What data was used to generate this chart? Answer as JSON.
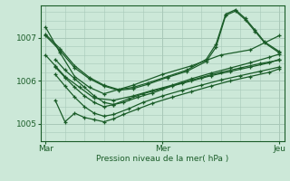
{
  "bg_color": "#cce8d8",
  "grid_color": "#a8c8b8",
  "line_color": "#1a5c28",
  "xlabel": "Pression niveau de la mer( hPa )",
  "xtick_labels": [
    "Mar",
    "Mer",
    "Jeu"
  ],
  "xtick_positions": [
    0,
    48,
    96
  ],
  "ytick_labels": [
    "1005",
    "1006",
    "1007"
  ],
  "ytick_positions": [
    1005,
    1006,
    1007
  ],
  "ylim": [
    1004.6,
    1007.75
  ],
  "xlim": [
    -2,
    98
  ],
  "series": [
    {
      "x": [
        0,
        6,
        12,
        18,
        24,
        36,
        48,
        60,
        72,
        84,
        96
      ],
      "y": [
        1007.25,
        1006.65,
        1006.1,
        1005.85,
        1005.7,
        1005.9,
        1006.15,
        1006.35,
        1006.6,
        1006.72,
        1007.05
      ]
    },
    {
      "x": [
        0,
        4,
        8,
        14,
        20,
        28,
        36,
        44,
        52,
        60,
        68,
        76,
        84,
        92,
        96
      ],
      "y": [
        1006.6,
        1006.35,
        1006.1,
        1005.85,
        1005.6,
        1005.55,
        1005.65,
        1005.78,
        1005.9,
        1006.05,
        1006.18,
        1006.3,
        1006.42,
        1006.55,
        1006.62
      ]
    },
    {
      "x": [
        4,
        8,
        12,
        16,
        20,
        24,
        28,
        32,
        38,
        44,
        52,
        60,
        68,
        76,
        84,
        92,
        96
      ],
      "y": [
        1006.5,
        1006.25,
        1006.05,
        1005.85,
        1005.65,
        1005.5,
        1005.45,
        1005.5,
        1005.62,
        1005.72,
        1005.88,
        1006.0,
        1006.12,
        1006.22,
        1006.32,
        1006.42,
        1006.5
      ]
    },
    {
      "x": [
        4,
        8,
        12,
        16,
        20,
        24,
        28,
        34,
        40,
        48,
        56,
        64,
        72,
        80,
        88,
        96
      ],
      "y": [
        1006.15,
        1005.88,
        1005.62,
        1005.4,
        1005.25,
        1005.18,
        1005.22,
        1005.35,
        1005.5,
        1005.65,
        1005.78,
        1005.9,
        1006.02,
        1006.12,
        1006.22,
        1006.32
      ]
    },
    {
      "x": [
        4,
        8,
        12,
        16,
        20,
        24,
        28,
        32,
        38,
        44,
        52,
        60,
        68,
        76,
        84,
        92,
        96
      ],
      "y": [
        1005.55,
        1005.05,
        1005.25,
        1005.15,
        1005.1,
        1005.05,
        1005.12,
        1005.22,
        1005.35,
        1005.48,
        1005.62,
        1005.75,
        1005.88,
        1006.0,
        1006.1,
        1006.2,
        1006.28
      ]
    },
    {
      "x": [
        4,
        8,
        12,
        16,
        20,
        24,
        28,
        34,
        40,
        48,
        56,
        64,
        72,
        80,
        88,
        96
      ],
      "y": [
        1006.32,
        1006.08,
        1005.85,
        1005.65,
        1005.5,
        1005.4,
        1005.45,
        1005.58,
        1005.7,
        1005.82,
        1005.95,
        1006.08,
        1006.2,
        1006.3,
        1006.4,
        1006.48
      ]
    },
    {
      "x": [
        0,
        6,
        12,
        18,
        24,
        30,
        36,
        42,
        50,
        58,
        66,
        70,
        74,
        78,
        82,
        86,
        90,
        96
      ],
      "y": [
        1007.05,
        1006.7,
        1006.3,
        1006.05,
        1005.88,
        1005.78,
        1005.82,
        1005.92,
        1006.08,
        1006.22,
        1006.45,
        1006.78,
        1007.52,
        1007.62,
        1007.42,
        1007.15,
        1006.88,
        1006.65
      ]
    },
    {
      "x": [
        0,
        6,
        12,
        18,
        24,
        30,
        36,
        42,
        50,
        58,
        66,
        70,
        74,
        78,
        82,
        86,
        90,
        96
      ],
      "y": [
        1007.08,
        1006.75,
        1006.35,
        1006.08,
        1005.9,
        1005.8,
        1005.85,
        1005.95,
        1006.1,
        1006.25,
        1006.5,
        1006.85,
        1007.55,
        1007.65,
        1007.45,
        1007.18,
        1006.9,
        1006.68
      ]
    }
  ]
}
